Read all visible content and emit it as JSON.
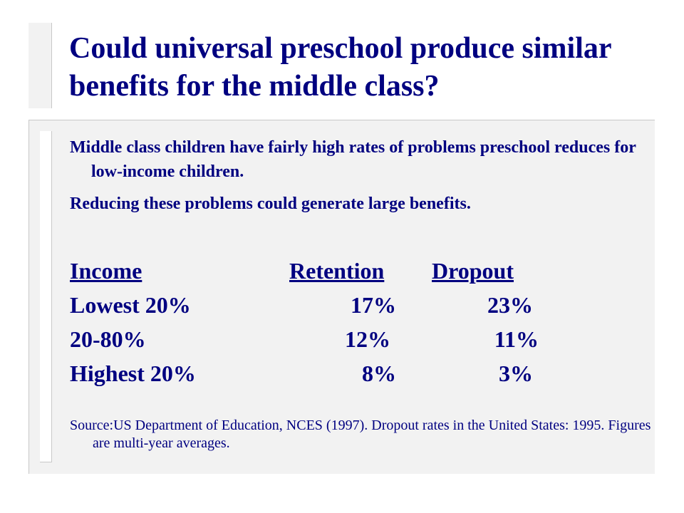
{
  "slide": {
    "title": "Could universal preschool produce similar benefits for the middle class?",
    "paragraphs": [
      "Middle class children have fairly high rates of problems preschool reduces for low-income children.",
      "Reducing these problems could generate large benefits."
    ],
    "table": {
      "headers": [
        "Income",
        "Retention",
        "Dropout"
      ],
      "rows": [
        {
          "group": "Lowest 20%",
          "retention": "17%",
          "dropout": "23%"
        },
        {
          "group": "20-80%",
          "retention": "12%",
          "dropout": "11%"
        },
        {
          "group": "Highest 20%",
          "retention": "8%",
          "dropout": "3%"
        }
      ]
    },
    "source": "Source:US Department of Education, NCES (1997).  Dropout rates in the United States: 1995.  Figures are multi-year averages."
  },
  "colors": {
    "text": "#000080",
    "panel": "#f2f2f2",
    "background": "#ffffff"
  }
}
